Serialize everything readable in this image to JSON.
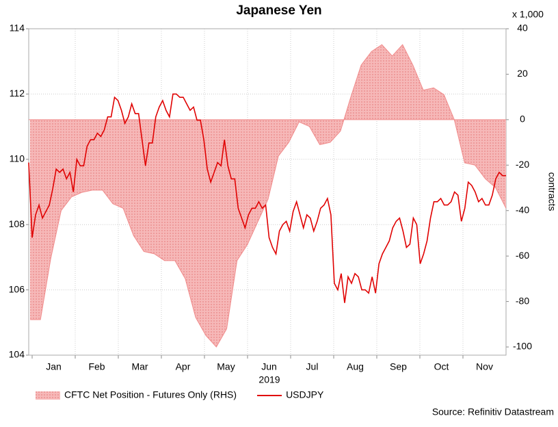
{
  "chart_data": {
    "type": "line",
    "title": "Japanese Yen",
    "x_labels": [
      "Jan",
      "Feb",
      "Mar",
      "Apr",
      "May",
      "Jun",
      "Jul",
      "Aug",
      "Sep",
      "Oct",
      "Nov"
    ],
    "x_group_label": "2019",
    "ylim": [
      104,
      114
    ],
    "yticks": [
      104,
      106,
      108,
      110,
      112,
      114
    ],
    "y2lim": [
      -103.6,
      40
    ],
    "y2ticks": [
      -100,
      -80,
      -60,
      -40,
      -20,
      0,
      20,
      40
    ],
    "y2_unit": "x 1,000",
    "y2label": "contracts",
    "grid": true,
    "series": [
      {
        "name": "CFTC Net Position - Futures Only (RHS)",
        "type": "area",
        "axis": "y2",
        "color": "#e03a3a",
        "values": [
          -88,
          -88,
          -61,
          -40,
          -34,
          -32,
          -31,
          -31,
          -37,
          -39,
          -51,
          -58,
          -59,
          -62,
          -62,
          -70,
          -87,
          -95,
          -100,
          -92,
          -62,
          -55,
          -45,
          -35,
          -16,
          -10,
          -1,
          -3,
          -11,
          -10,
          -5,
          10,
          24,
          30,
          33,
          28,
          33,
          24,
          13,
          14,
          11,
          0,
          -19,
          -20,
          -26,
          -30,
          -39
        ]
      },
      {
        "name": "USDJPY",
        "type": "line",
        "color": "#e00000",
        "values": [
          109.9,
          107.6,
          108.3,
          108.6,
          108.2,
          108.4,
          108.6,
          109.1,
          109.7,
          109.6,
          109.7,
          109.4,
          109.6,
          109.0,
          110.0,
          109.8,
          109.8,
          110.4,
          110.6,
          110.6,
          110.8,
          110.7,
          110.9,
          111.3,
          111.3,
          111.9,
          111.8,
          111.5,
          111.1,
          111.3,
          111.7,
          111.4,
          111.4,
          110.6,
          109.8,
          110.5,
          110.5,
          111.3,
          111.6,
          111.8,
          111.5,
          111.3,
          112.0,
          112.0,
          111.9,
          111.9,
          111.7,
          111.5,
          111.6,
          111.2,
          111.2,
          110.6,
          109.7,
          109.3,
          109.6,
          109.9,
          109.8,
          110.6,
          109.8,
          109.4,
          109.4,
          108.5,
          108.2,
          107.9,
          108.3,
          108.5,
          108.5,
          108.7,
          108.5,
          108.6,
          107.6,
          107.3,
          107.1,
          107.8,
          108.0,
          108.1,
          107.8,
          108.4,
          108.7,
          108.3,
          107.9,
          108.3,
          108.2,
          107.8,
          108.1,
          108.5,
          108.6,
          108.8,
          108.3,
          106.2,
          106.0,
          106.5,
          105.6,
          106.4,
          106.2,
          106.5,
          106.4,
          106.0,
          106.0,
          105.9,
          106.4,
          105.9,
          106.8,
          107.1,
          107.3,
          107.5,
          107.9,
          108.1,
          108.2,
          107.8,
          107.3,
          107.4,
          108.2,
          108.0,
          106.8,
          107.1,
          107.5,
          108.2,
          108.7,
          108.7,
          108.8,
          108.6,
          108.6,
          108.7,
          109.0,
          108.9,
          108.1,
          108.5,
          109.3,
          109.2,
          109.0,
          108.7,
          108.8,
          108.6,
          108.6,
          108.9,
          109.4,
          109.6,
          109.5,
          109.5
        ]
      }
    ],
    "source": "Source: Refinitiv Datastream"
  }
}
